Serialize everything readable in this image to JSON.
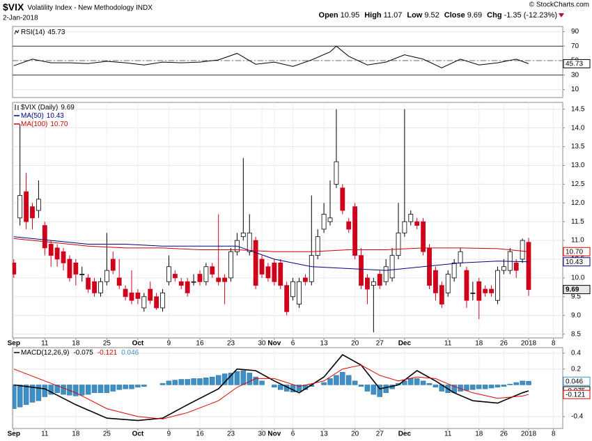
{
  "header": {
    "symbol": "$VIX",
    "name": "Volatility Index - New Methodology INDX",
    "date": "2-Jan-2018",
    "quote": [
      {
        "label": "Open",
        "value": "10.95"
      },
      {
        "label": "High",
        "value": "11.07"
      },
      {
        "label": "Low",
        "value": "9.52"
      },
      {
        "label": "Close",
        "value": "9.69"
      },
      {
        "label": "Chg",
        "value": "-1.35 (-12.23%)"
      }
    ],
    "copyright": "© StockCharts.com"
  },
  "chart_data": [
    {
      "type": "line",
      "series": [
        {
          "name": "RSI(14)",
          "last_label": "45.73",
          "color": "#000000",
          "x": [
            0,
            3,
            6,
            9,
            12,
            15,
            18,
            21,
            24,
            27,
            30,
            33,
            36,
            39,
            42,
            45,
            48,
            51,
            52,
            54,
            57,
            60,
            63,
            66,
            69,
            72,
            75,
            78,
            81,
            83
          ],
          "values": [
            43,
            52,
            47,
            47,
            46,
            49,
            47,
            44,
            48,
            47,
            48,
            51,
            60,
            45,
            48,
            42,
            51,
            62,
            70,
            56,
            44,
            48,
            58,
            52,
            40,
            52,
            44,
            47,
            52,
            45.73
          ]
        }
      ],
      "reference_lines": [
        {
          "value": 70,
          "style": "solid"
        },
        {
          "value": 50,
          "style": "dashdot"
        },
        {
          "value": 30,
          "style": "solid"
        }
      ],
      "xlim": [
        -0.2,
        88.5
      ],
      "ylim": [
        0,
        100
      ],
      "yticks": [
        90,
        70,
        50,
        30,
        10
      ],
      "grid": true
    },
    {
      "type": "candlestick",
      "name": "$VIX (Daily)",
      "last_label": "9.69",
      "up_color": "#ffffff",
      "down_color": "#d0021b",
      "open": [
        10.4,
        11.6,
        12.3,
        11.9,
        11.8,
        11.4,
        10.9,
        10.8,
        10.7,
        10.5,
        10.4,
        10.1,
        10.0,
        9.9,
        9.6,
        9.9,
        10.5,
        10.0,
        9.7,
        9.6,
        9.6,
        9.2,
        9.7,
        9.5,
        9.2,
        9.9,
        10.1,
        9.9,
        9.9,
        9.9,
        10.1,
        9.9,
        10.3,
        10.0,
        10.0,
        10.0,
        10.7,
        11.1,
        10.7,
        11.0,
        10.5,
        10.3,
        10.4,
        10.4,
        9.8,
        9.5,
        9.3,
        10.0,
        9.9,
        10.6,
        11.3,
        11.5,
        12.5,
        12.4,
        11.5,
        11.9,
        10.6,
        10.0,
        9.8,
        10.1,
        9.9,
        10.0,
        10.6,
        11.2,
        11.5,
        11.5,
        11.5,
        10.8,
        10.2,
        9.8,
        9.6,
        10.0,
        10.4,
        10.2,
        9.6,
        9.9,
        9.7,
        9.7,
        9.4,
        10.2,
        10.2,
        10.4,
        10.5,
        10.95
      ],
      "high": [
        10.5,
        14.1,
        12.8,
        12.0,
        12.6,
        11.5,
        11.0,
        10.9,
        10.8,
        10.6,
        10.5,
        10.3,
        10.1,
        10.0,
        10.0,
        11.2,
        10.7,
        10.5,
        9.8,
        10.2,
        9.7,
        9.6,
        9.9,
        9.6,
        9.7,
        10.6,
        10.2,
        10.0,
        10.0,
        10.1,
        10.2,
        10.4,
        10.4,
        11.7,
        10.1,
        10.8,
        11.2,
        13.2,
        11.7,
        11.1,
        10.6,
        10.4,
        10.5,
        10.5,
        9.9,
        10.0,
        10.0,
        10.1,
        12.2,
        11.3,
        12.0,
        12.6,
        14.5,
        12.5,
        11.6,
        12.0,
        10.8,
        10.1,
        10.0,
        10.2,
        10.5,
        10.8,
        12.0,
        14.5,
        11.8,
        11.6,
        11.6,
        10.9,
        10.3,
        9.9,
        10.2,
        10.5,
        10.8,
        10.3,
        9.9,
        10.0,
        9.8,
        9.8,
        10.3,
        10.5,
        10.8,
        10.5,
        11.05,
        11.07
      ],
      "low": [
        10.0,
        11.4,
        11.3,
        11.3,
        11.6,
        10.6,
        10.3,
        10.3,
        10.2,
        9.9,
        9.8,
        9.9,
        9.6,
        9.5,
        9.5,
        9.8,
        10.1,
        9.7,
        9.4,
        9.3,
        9.3,
        9.1,
        9.3,
        9.15,
        9.1,
        9.8,
        9.9,
        9.7,
        9.5,
        9.8,
        9.8,
        9.8,
        10.0,
        9.8,
        9.3,
        9.9,
        10.6,
        11.0,
        10.6,
        9.7,
        10.0,
        9.9,
        9.8,
        9.7,
        9.0,
        9.4,
        9.2,
        9.8,
        9.8,
        10.5,
        11.2,
        11.4,
        12.4,
        11.7,
        11.2,
        10.5,
        9.7,
        9.3,
        8.55,
        9.7,
        9.8,
        9.9,
        10.5,
        11.1,
        11.4,
        11.3,
        10.6,
        9.7,
        9.4,
        9.2,
        9.5,
        9.9,
        10.3,
        9.2,
        9.4,
        8.9,
        9.5,
        9.5,
        9.3,
        10.1,
        10.1,
        10.0,
        10.4,
        9.52
      ],
      "close": [
        10.1,
        12.2,
        11.5,
        11.6,
        12.1,
        10.8,
        10.6,
        10.5,
        10.4,
        10.0,
        10.1,
        10.1,
        9.7,
        9.6,
        9.9,
        10.2,
        10.2,
        9.8,
        9.5,
        9.4,
        9.45,
        9.5,
        9.4,
        9.2,
        9.6,
        10.3,
        10.0,
        9.8,
        9.6,
        9.9,
        9.9,
        10.3,
        10.1,
        9.9,
        9.9,
        10.7,
        11.0,
        11.2,
        11.2,
        9.8,
        10.1,
        10.0,
        9.9,
        9.8,
        9.1,
        9.9,
        9.9,
        9.9,
        10.6,
        11.1,
        11.7,
        11.6,
        13.1,
        11.8,
        11.3,
        10.6,
        9.8,
        9.7,
        9.9,
        9.8,
        10.3,
        10.6,
        11.2,
        11.5,
        11.7,
        11.4,
        10.7,
        9.8,
        9.6,
        9.3,
        10.1,
        10.4,
        10.7,
        9.4,
        9.6,
        9.4,
        9.6,
        9.6,
        10.2,
        10.3,
        10.7,
        10.2,
        11.0,
        9.69
      ],
      "overlays": [
        {
          "name": "MA(50)",
          "last_label": "10.43",
          "color": "#000080",
          "x": [
            0,
            6,
            12,
            18,
            24,
            30,
            36,
            42,
            48,
            54,
            60,
            66,
            72,
            78,
            83
          ],
          "values": [
            11.1,
            11.0,
            10.9,
            10.9,
            10.85,
            10.85,
            10.85,
            10.5,
            10.3,
            10.25,
            10.2,
            10.3,
            10.4,
            10.45,
            10.43
          ]
        },
        {
          "name": "MA(100)",
          "last_label": "10.70",
          "color": "#cc0000",
          "x": [
            0,
            6,
            12,
            18,
            24,
            30,
            36,
            42,
            48,
            54,
            60,
            66,
            72,
            78,
            83
          ],
          "values": [
            11.05,
            10.95,
            10.85,
            10.8,
            10.8,
            10.75,
            10.75,
            10.7,
            10.7,
            10.75,
            10.75,
            10.8,
            10.8,
            10.78,
            10.7
          ]
        }
      ],
      "xlim": [
        -0.2,
        88.5
      ],
      "ylim": [
        8.4,
        14.7
      ],
      "yticks": [
        8.5,
        {
          "value": 9,
          "label": "9.0"
        },
        9.5,
        {
          "value": 10,
          "label": "10.0"
        },
        10.5,
        {
          "value": 11,
          "label": "11.0"
        },
        11.5,
        {
          "value": 12,
          "label": "12.0"
        },
        12.5,
        {
          "value": 13,
          "label": "13.0"
        },
        13.5,
        {
          "value": 14,
          "label": "14.0"
        },
        14.5
      ],
      "xticks": [
        {
          "value": 0,
          "label": "Sep"
        },
        {
          "value": 5,
          "label": "11"
        },
        {
          "value": 10,
          "label": "18"
        },
        {
          "value": 15,
          "label": "25"
        },
        {
          "value": 20,
          "label": "Oct"
        },
        {
          "value": 25,
          "label": "9"
        },
        {
          "value": 30,
          "label": "16"
        },
        {
          "value": 35,
          "label": "23"
        },
        {
          "value": 40,
          "label": "30"
        },
        {
          "value": 42,
          "label": "Nov"
        },
        {
          "value": 45,
          "label": "6"
        },
        {
          "value": 50,
          "label": "13"
        },
        {
          "value": 55,
          "label": "20"
        },
        {
          "value": 59,
          "label": "27"
        },
        {
          "value": 63,
          "label": "Dec"
        },
        {
          "value": 70,
          "label": "11"
        },
        {
          "value": 75,
          "label": "18"
        },
        {
          "value": 79,
          "label": "26"
        },
        {
          "value": 83,
          "label": "2018"
        },
        {
          "value": 87,
          "label": "8"
        }
      ],
      "grid": true
    },
    {
      "type": "macd",
      "series": [
        {
          "name": "MACD(12,26,9)",
          "last_label": "-0.075",
          "color": "#000000",
          "x": [
            0,
            5,
            10,
            15,
            20,
            24,
            28,
            33,
            36,
            39,
            42,
            46,
            50,
            53,
            56,
            59,
            62,
            65,
            68,
            71,
            74,
            78,
            82,
            83
          ],
          "values": [
            0.0,
            -0.05,
            -0.25,
            -0.42,
            -0.45,
            -0.42,
            -0.25,
            -0.05,
            0.2,
            0.18,
            0.05,
            -0.1,
            0.1,
            0.38,
            0.25,
            -0.05,
            0.0,
            0.18,
            0.05,
            -0.1,
            -0.2,
            -0.23,
            -0.1,
            -0.075
          ]
        },
        {
          "last_label": "-0.121",
          "color": "#e00000",
          "x": [
            0,
            5,
            10,
            15,
            20,
            24,
            28,
            33,
            36,
            39,
            42,
            46,
            50,
            53,
            56,
            59,
            62,
            65,
            68,
            71,
            74,
            78,
            82,
            83
          ],
          "values": [
            0.2,
            0.05,
            -0.1,
            -0.3,
            -0.4,
            -0.43,
            -0.35,
            -0.2,
            -0.03,
            0.08,
            0.08,
            -0.02,
            0.05,
            0.2,
            0.25,
            0.12,
            0.05,
            0.1,
            0.08,
            -0.02,
            -0.1,
            -0.17,
            -0.14,
            -0.121
          ]
        }
      ],
      "histogram": {
        "last_label": "0.046",
        "color": "#3d8fc6",
        "values": [
          -0.3,
          -0.28,
          -0.25,
          -0.22,
          -0.2,
          -0.15,
          -0.12,
          -0.1,
          -0.12,
          -0.13,
          -0.14,
          -0.13,
          -0.12,
          -0.1,
          -0.1,
          -0.1,
          -0.08,
          -0.06,
          -0.05,
          -0.05,
          -0.03,
          -0.02,
          0.0,
          0.0,
          0.02,
          0.05,
          0.06,
          0.07,
          0.07,
          0.08,
          0.08,
          0.09,
          0.1,
          0.12,
          0.14,
          0.15,
          0.17,
          0.18,
          0.15,
          0.1,
          0.05,
          0.0,
          -0.03,
          -0.06,
          -0.08,
          -0.09,
          -0.08,
          -0.06,
          -0.02,
          0.0,
          0.03,
          0.08,
          0.12,
          0.16,
          0.12,
          0.05,
          -0.02,
          -0.08,
          -0.12,
          -0.15,
          -0.1,
          -0.05,
          0.02,
          0.05,
          0.08,
          0.08,
          0.05,
          0.02,
          -0.03,
          -0.08,
          -0.1,
          -0.1,
          -0.08,
          -0.07,
          -0.06,
          -0.05,
          -0.05,
          -0.04,
          -0.03,
          -0.02,
          0.01,
          0.03,
          0.05,
          0.046
        ]
      },
      "xlim": [
        -0.2,
        88.5
      ],
      "ylim": [
        -0.55,
        0.47
      ],
      "yticks": [
        0.4,
        0.2,
        -0.4
      ],
      "xticks": [
        {
          "value": 0,
          "label": "Sep"
        },
        {
          "value": 5,
          "label": "11"
        },
        {
          "value": 10,
          "label": "18"
        },
        {
          "value": 15,
          "label": "25"
        },
        {
          "value": 20,
          "label": "Oct"
        },
        {
          "value": 25,
          "label": "9"
        },
        {
          "value": 30,
          "label": "16"
        },
        {
          "value": 35,
          "label": "23"
        },
        {
          "value": 40,
          "label": "30"
        },
        {
          "value": 42,
          "label": "Nov"
        },
        {
          "value": 45,
          "label": "6"
        },
        {
          "value": 50,
          "label": "13"
        },
        {
          "value": 55,
          "label": "20"
        },
        {
          "value": 59,
          "label": "27"
        },
        {
          "value": 63,
          "label": "Dec"
        },
        {
          "value": 70,
          "label": "11"
        },
        {
          "value": 75,
          "label": "18"
        },
        {
          "value": 79,
          "label": "26"
        },
        {
          "value": 83,
          "label": "2018"
        },
        {
          "value": 87,
          "label": "8"
        }
      ],
      "grid": true
    }
  ]
}
